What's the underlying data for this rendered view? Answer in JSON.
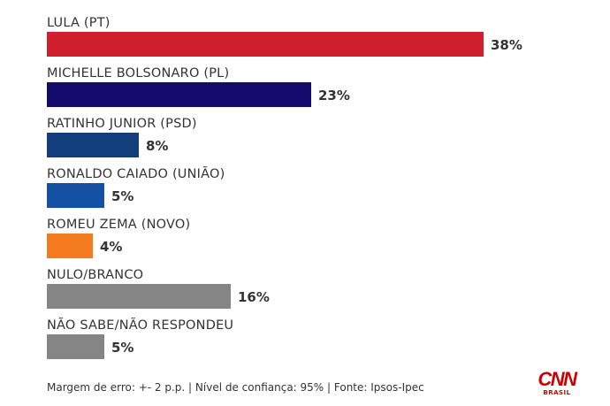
{
  "chart_data": {
    "type": "bar",
    "orientation": "horizontal",
    "categories": [
      "LULA (PT)",
      "MICHELLE BOLSONARO (PL)",
      "RATINHO JUNIOR (PSD)",
      "RONALDO CAIADO (UNIÃO)",
      "ROMEU ZEMA (NOVO)",
      "NULO/BRANCO",
      "NÃO SABE/NÃO RESPONDEU"
    ],
    "values": [
      38,
      23,
      8,
      5,
      4,
      16,
      5
    ],
    "value_labels": [
      "38%",
      "23%",
      "8%",
      "5%",
      "4%",
      "16%",
      "5%"
    ],
    "colors": [
      "#d0202e",
      "#150a6e",
      "#123f7b",
      "#1450a3",
      "#f47a20",
      "#858585",
      "#858585"
    ],
    "grid": false,
    "legend": "none"
  },
  "footer": {
    "note": "Margem de erro: +- 2 p.p. | Nível de confiança: 95% | Fonte: Ipsos-Ipec"
  },
  "logo": {
    "name": "CNN",
    "subtitle": "BRASIL"
  }
}
